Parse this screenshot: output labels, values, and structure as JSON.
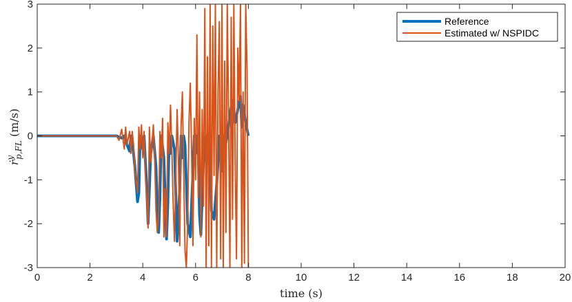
{
  "chart_data": {
    "type": "line",
    "title": "",
    "xlabel": "time (s)",
    "ylabel": "ṙ^y_{p,FL} (m/s)",
    "ylabel_display": "ṙ",
    "ylabel_sup": "y",
    "ylabel_sub": "p,FL",
    "ylabel_unit": " (m/s)",
    "xlim": [
      0,
      20
    ],
    "ylim": [
      -3,
      3
    ],
    "xticks": [
      0,
      2,
      4,
      6,
      8,
      10,
      12,
      14,
      16,
      18,
      20
    ],
    "yticks": [
      -3,
      -2,
      -1,
      0,
      1,
      2,
      3
    ],
    "grid": false,
    "legend_position": "top-right",
    "series": [
      {
        "name": "Reference",
        "color": "#0072BD",
        "line_width": "thick",
        "x": [
          0,
          3.0,
          3.2,
          3.3,
          3.4,
          3.5,
          3.55,
          3.6,
          3.7,
          3.8,
          3.85,
          3.9,
          4.0,
          4.05,
          4.1,
          4.15,
          4.2,
          4.3,
          4.4,
          4.5,
          4.55,
          4.6,
          4.65,
          4.7,
          4.8,
          4.9,
          4.95,
          5.0,
          5.05,
          5.1,
          5.2,
          5.3,
          5.4,
          5.45,
          5.5,
          5.55,
          5.6,
          5.7,
          5.8,
          5.9,
          5.95,
          6.0,
          6.05,
          6.1,
          6.15,
          6.2,
          6.3,
          6.4,
          6.45,
          6.5,
          6.55,
          6.6,
          6.7,
          6.8,
          6.85,
          6.9,
          7.0,
          7.05,
          7.1,
          7.2,
          7.3,
          7.4,
          7.5,
          7.6,
          7.7,
          7.75,
          7.8,
          7.9,
          8.0
        ],
        "y": [
          0,
          0,
          -0.05,
          0,
          -0.2,
          -0.35,
          0,
          -0.1,
          -0.7,
          -1.5,
          -1.3,
          0,
          -0.3,
          0,
          -0.6,
          -1.2,
          -2.0,
          -0.4,
          0,
          -0.7,
          -1.6,
          -2.2,
          -1.4,
          0,
          -0.5,
          -2.35,
          -1.5,
          0,
          -0.4,
          0,
          -0.3,
          -2.4,
          -1.2,
          0,
          -0.5,
          0,
          -0.2,
          -2.0,
          -2.3,
          -0.8,
          0,
          -0.4,
          0,
          -0.3,
          -1.8,
          -2.25,
          -0.6,
          0,
          -0.2,
          0,
          -0.4,
          -1.7,
          -1.9,
          -1.1,
          -0.6,
          0,
          -0.8,
          0,
          -0.3,
          0,
          0.5,
          0.8,
          0.3,
          0.6,
          0.9,
          0.2,
          0.7,
          0.3,
          0
        ]
      },
      {
        "name": "Estimated w/ NSPIDC",
        "color": "#D95319",
        "line_width": "thin",
        "x": [
          0,
          3.0,
          3.1,
          3.2,
          3.3,
          3.35,
          3.4,
          3.5,
          3.55,
          3.6,
          3.65,
          3.7,
          3.8,
          3.85,
          3.9,
          3.95,
          4.0,
          4.05,
          4.1,
          4.15,
          4.2,
          4.25,
          4.3,
          4.4,
          4.45,
          4.5,
          4.55,
          4.6,
          4.65,
          4.7,
          4.75,
          4.8,
          4.85,
          4.9,
          4.95,
          5.0,
          5.05,
          5.1,
          5.15,
          5.2,
          5.25,
          5.3,
          5.35,
          5.4,
          5.45,
          5.5,
          5.55,
          5.6,
          5.65,
          5.7,
          5.75,
          5.8,
          5.85,
          5.9,
          5.95,
          6.0,
          6.05,
          6.1,
          6.15,
          6.2,
          6.25,
          6.3,
          6.35,
          6.4,
          6.45,
          6.5,
          6.55,
          6.6,
          6.65,
          6.7,
          6.75,
          6.8,
          6.85,
          6.9,
          6.95,
          7.0,
          7.05,
          7.1,
          7.15,
          7.2,
          7.25,
          7.3,
          7.35,
          7.4,
          7.45,
          7.5,
          7.55,
          7.6,
          7.65,
          7.7,
          7.75,
          7.8,
          7.85,
          7.9,
          7.95,
          8.0
        ],
        "y": [
          0,
          0,
          -0.1,
          0.15,
          -0.3,
          0.2,
          -0.2,
          0.1,
          -0.4,
          0.1,
          -0.2,
          -0.8,
          -1.3,
          0.2,
          -0.3,
          0.25,
          -0.5,
          0.1,
          -0.9,
          -1.4,
          -2.1,
          0.2,
          -0.6,
          0.25,
          -0.5,
          -1.7,
          -2.2,
          -1.8,
          0.1,
          -0.5,
          0.4,
          -2.3,
          -1.2,
          -2.3,
          0.3,
          -0.4,
          0.7,
          -0.3,
          -1.5,
          -2.4,
          -1.0,
          0.6,
          -0.5,
          -2.5,
          0.2,
          1.0,
          -0.8,
          -2.6,
          -3.0,
          -2.0,
          0.3,
          1.2,
          -0.4,
          -2.5,
          0.4,
          -1.0,
          2.3,
          -1.4,
          1.0,
          -2.3,
          0.6,
          -1.6,
          2.9,
          -3.0,
          1.8,
          -2.5,
          3.0,
          -3.0,
          2.5,
          -0.9,
          3.0,
          -3.0,
          1.0,
          2.6,
          -2.8,
          3.0,
          -3.0,
          1.7,
          -2.2,
          3.0,
          0.5,
          -3.0,
          2.7,
          -1.9,
          3.0,
          -0.6,
          -2.8,
          2.0,
          0.8,
          3.0,
          -3.0,
          1.0,
          -2.9,
          3.0,
          1.5,
          -3.0
        ]
      }
    ]
  }
}
